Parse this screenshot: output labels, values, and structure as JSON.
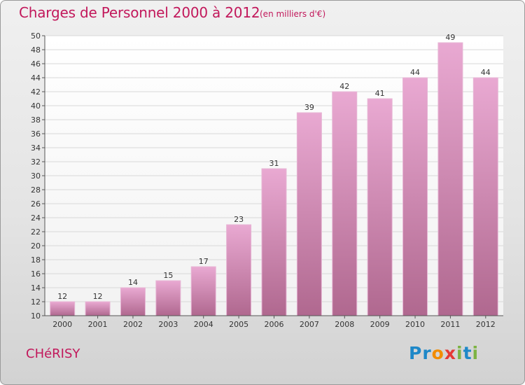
{
  "header": {
    "title": "Charges de Personnel 2000 à 2012",
    "subtitle": "(en milliers d'€)"
  },
  "footer": {
    "commune": "CHéRISY",
    "logo_letters": [
      {
        "ch": "P",
        "color": "#1e88c8"
      },
      {
        "ch": "r",
        "color": "#1e88c8"
      },
      {
        "ch": "o",
        "color": "#f28c00"
      },
      {
        "ch": "x",
        "color": "#e53935"
      },
      {
        "ch": "i",
        "color": "#7cb342"
      },
      {
        "ch": "t",
        "color": "#1e88c8"
      },
      {
        "ch": "i",
        "color": "#7cb342"
      }
    ]
  },
  "chart_data": {
    "type": "bar",
    "title": "Charges de Personnel 2000 à 2012",
    "subtitle": "(en milliers d'€)",
    "categories": [
      "2000",
      "2001",
      "2002",
      "2003",
      "2004",
      "2005",
      "2006",
      "2007",
      "2008",
      "2009",
      "2010",
      "2011",
      "2012"
    ],
    "values": [
      12,
      12,
      14,
      15,
      17,
      23,
      31,
      39,
      42,
      41,
      44,
      49,
      44
    ],
    "ylim": [
      10,
      50
    ],
    "yticks": [
      10,
      12,
      14,
      16,
      18,
      20,
      22,
      24,
      26,
      28,
      30,
      32,
      34,
      36,
      38,
      40,
      42,
      44,
      46,
      48,
      50
    ],
    "grid": true,
    "bar_color_top": "#e9a9d2",
    "bar_color_bottom": "#b0688f"
  }
}
